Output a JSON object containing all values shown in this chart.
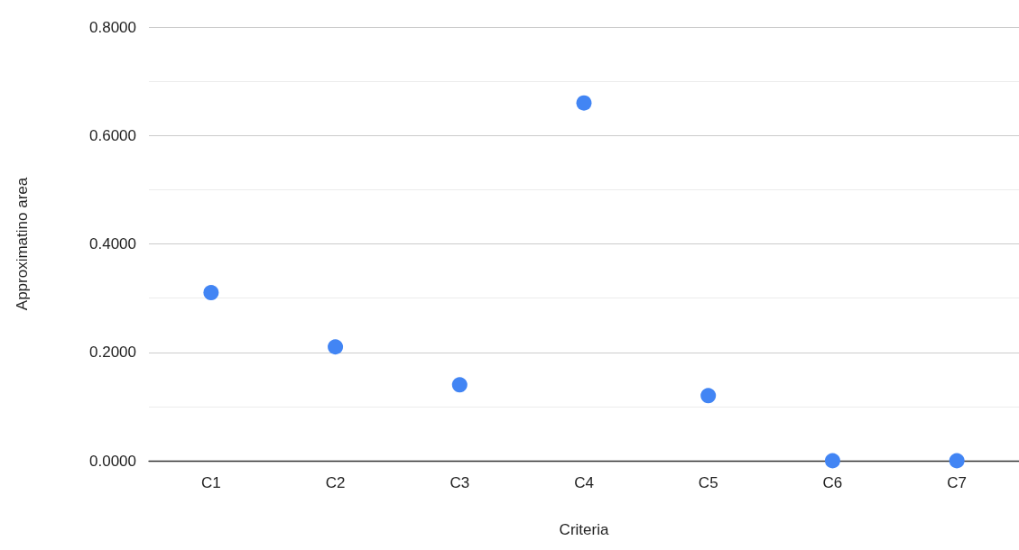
{
  "chart_data": {
    "type": "scatter",
    "xlabel": "Criteria",
    "ylabel": "Approximatino area",
    "categories": [
      "C1",
      "C2",
      "C3",
      "C4",
      "C5",
      "C6",
      "C7"
    ],
    "series": [
      {
        "color": "#4285f4",
        "values": [
          0.31,
          0.21,
          0.14,
          0.66,
          0.12,
          0,
          0
        ]
      }
    ],
    "ylim": [
      0,
      0.8
    ],
    "yticks": [
      {
        "value": 0,
        "label": "0.0000"
      },
      {
        "value": 0.1,
        "label": null
      },
      {
        "value": 0.2,
        "label": "0.2000"
      },
      {
        "value": 0.3,
        "label": null
      },
      {
        "value": 0.4,
        "label": "0.4000"
      },
      {
        "value": 0.5,
        "label": null
      },
      {
        "value": 0.6,
        "label": "0.6000"
      },
      {
        "value": 0.7,
        "label": null
      },
      {
        "value": 0.8,
        "label": "0.8000"
      }
    ],
    "grid": "y",
    "marker": "circle"
  }
}
